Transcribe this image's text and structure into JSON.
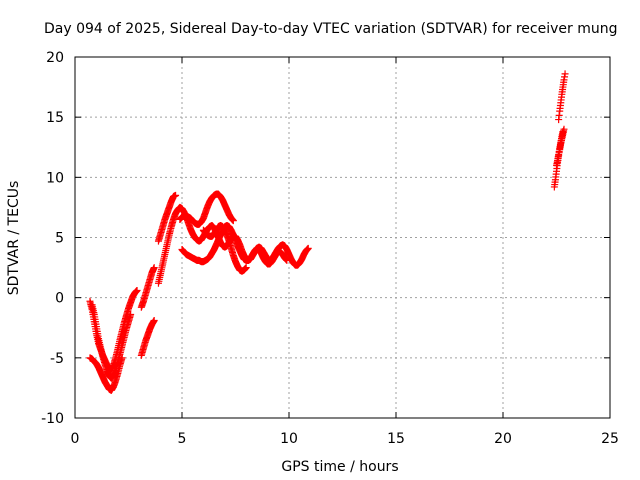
{
  "chart_data": {
    "type": "scatter",
    "title": "Day 094 of 2025, Sidereal Day-to-day VTEC variation (SDTVAR) for receiver mung",
    "xlabel": "GPS time / hours",
    "ylabel": "SDTVAR / TECUs",
    "xlim": [
      0,
      25
    ],
    "ylim": [
      -10,
      20
    ],
    "xticks": [
      "0",
      "5",
      "10",
      "15",
      "20",
      "25"
    ],
    "yticks": [
      "-10",
      "-5",
      "0",
      "5",
      "10",
      "15",
      "20"
    ],
    "grid": true,
    "legend": "none",
    "marker": "+",
    "series_color": "#ff0000",
    "series": [
      {
        "values": [
          [
            0.7,
            -0.3
          ],
          [
            0.8,
            -1.0
          ],
          [
            0.9,
            -2.0
          ],
          [
            1.0,
            -3.0
          ],
          [
            1.1,
            -3.8
          ],
          [
            1.2,
            -4.3
          ],
          [
            1.3,
            -4.8
          ],
          [
            1.4,
            -5.2
          ],
          [
            1.5,
            -5.6
          ],
          [
            1.6,
            -5.8
          ],
          [
            1.7,
            -5.9
          ],
          [
            1.8,
            -5.6
          ],
          [
            1.9,
            -5.0
          ],
          [
            2.0,
            -4.3
          ],
          [
            2.1,
            -3.5
          ],
          [
            2.2,
            -2.8
          ],
          [
            2.3,
            -2.1
          ],
          [
            2.4,
            -1.5
          ],
          [
            2.5,
            -0.9
          ],
          [
            2.6,
            -0.4
          ],
          [
            2.7,
            0.1
          ],
          [
            2.8,
            0.4
          ],
          [
            2.9,
            0.6
          ]
        ]
      },
      {
        "values": [
          [
            0.8,
            -0.6
          ],
          [
            0.9,
            -1.4
          ],
          [
            1.0,
            -2.4
          ],
          [
            1.1,
            -3.4
          ],
          [
            1.2,
            -4.2
          ],
          [
            1.3,
            -4.9
          ],
          [
            1.4,
            -5.5
          ],
          [
            1.5,
            -6.1
          ],
          [
            1.6,
            -6.5
          ],
          [
            1.7,
            -6.7
          ],
          [
            1.8,
            -6.4
          ],
          [
            1.9,
            -6.0
          ],
          [
            2.0,
            -5.4
          ],
          [
            2.1,
            -4.7
          ],
          [
            2.2,
            -4.0
          ],
          [
            2.3,
            -3.3
          ],
          [
            2.4,
            -2.6
          ],
          [
            2.5,
            -2.0
          ],
          [
            2.6,
            -1.4
          ]
        ]
      },
      {
        "values": [
          [
            0.7,
            -5.0
          ],
          [
            0.8,
            -5.1
          ],
          [
            0.9,
            -5.3
          ],
          [
            1.0,
            -5.5
          ],
          [
            1.1,
            -5.8
          ],
          [
            1.2,
            -6.2
          ],
          [
            1.3,
            -6.6
          ],
          [
            1.4,
            -7.0
          ],
          [
            1.5,
            -7.3
          ],
          [
            1.6,
            -7.6
          ],
          [
            1.7,
            -7.7
          ],
          [
            1.8,
            -7.4
          ],
          [
            1.9,
            -6.9
          ],
          [
            2.0,
            -6.3
          ],
          [
            2.1,
            -5.6
          ],
          [
            2.2,
            -5.0
          ]
        ]
      },
      {
        "values": [
          [
            3.1,
            -4.8
          ],
          [
            3.2,
            -4.2
          ],
          [
            3.3,
            -3.6
          ],
          [
            3.4,
            -3.1
          ],
          [
            3.5,
            -2.6
          ],
          [
            3.6,
            -2.2
          ],
          [
            3.7,
            -1.9
          ]
        ]
      },
      {
        "values": [
          [
            3.1,
            -0.8
          ],
          [
            3.2,
            -0.3
          ],
          [
            3.3,
            0.3
          ],
          [
            3.4,
            0.9
          ],
          [
            3.5,
            1.5
          ],
          [
            3.6,
            2.1
          ],
          [
            3.7,
            2.5
          ]
        ]
      },
      {
        "values": [
          [
            3.9,
            1.2
          ],
          [
            4.0,
            2.0
          ],
          [
            4.1,
            2.8
          ],
          [
            4.2,
            3.6
          ],
          [
            4.3,
            4.4
          ],
          [
            4.4,
            5.2
          ],
          [
            4.5,
            5.9
          ],
          [
            4.6,
            6.5
          ],
          [
            4.7,
            7.0
          ],
          [
            4.8,
            7.3
          ],
          [
            4.9,
            7.5
          ],
          [
            5.0,
            7.4
          ],
          [
            5.1,
            7.1
          ],
          [
            5.2,
            6.7
          ],
          [
            5.3,
            6.2
          ],
          [
            5.4,
            5.7
          ],
          [
            5.5,
            5.3
          ],
          [
            5.6,
            5.0
          ],
          [
            5.7,
            4.8
          ],
          [
            5.8,
            4.7
          ],
          [
            5.9,
            4.8
          ],
          [
            6.0,
            5.1
          ],
          [
            6.1,
            5.4
          ],
          [
            6.2,
            5.7
          ],
          [
            6.3,
            5.9
          ],
          [
            6.4,
            6.0
          ],
          [
            6.5,
            5.8
          ],
          [
            6.6,
            5.4
          ],
          [
            6.7,
            5.0
          ],
          [
            6.8,
            4.6
          ],
          [
            6.9,
            4.3
          ],
          [
            7.0,
            4.2
          ],
          [
            7.1,
            4.3
          ],
          [
            7.2,
            4.6
          ],
          [
            7.3,
            4.9
          ],
          [
            7.4,
            5.1
          ],
          [
            7.5,
            5.1
          ],
          [
            7.6,
            4.8
          ],
          [
            7.7,
            4.4
          ],
          [
            7.8,
            3.9
          ],
          [
            7.9,
            3.5
          ],
          [
            8.0,
            3.2
          ],
          [
            8.1,
            3.1
          ],
          [
            8.2,
            3.2
          ],
          [
            8.3,
            3.5
          ],
          [
            8.4,
            3.8
          ],
          [
            8.5,
            4.1
          ],
          [
            8.6,
            4.2
          ],
          [
            8.7,
            4.1
          ],
          [
            8.8,
            3.8
          ],
          [
            8.9,
            3.5
          ],
          [
            9.0,
            3.2
          ],
          [
            9.1,
            3.1
          ],
          [
            9.2,
            3.2
          ],
          [
            9.3,
            3.5
          ],
          [
            9.4,
            3.8
          ],
          [
            9.5,
            4.1
          ],
          [
            9.6,
            4.3
          ],
          [
            9.7,
            4.4
          ],
          [
            9.8,
            4.3
          ],
          [
            9.9,
            4.0
          ],
          [
            10.0,
            3.6
          ],
          [
            10.1,
            3.2
          ],
          [
            10.2,
            2.9
          ],
          [
            10.3,
            2.7
          ],
          [
            10.4,
            2.7
          ],
          [
            10.5,
            2.9
          ],
          [
            10.6,
            3.2
          ],
          [
            10.7,
            3.6
          ],
          [
            10.8,
            3.9
          ],
          [
            10.9,
            4.1
          ]
        ]
      },
      {
        "values": [
          [
            3.9,
            4.7
          ],
          [
            4.0,
            5.3
          ],
          [
            4.1,
            5.9
          ],
          [
            4.2,
            6.5
          ],
          [
            4.3,
            7.0
          ],
          [
            4.4,
            7.5
          ],
          [
            4.5,
            8.0
          ],
          [
            4.6,
            8.4
          ],
          [
            4.7,
            8.5
          ]
        ]
      },
      {
        "values": [
          [
            4.9,
            6.5
          ],
          [
            5.0,
            6.7
          ],
          [
            5.1,
            6.8
          ],
          [
            5.2,
            6.8
          ],
          [
            5.3,
            6.7
          ],
          [
            5.4,
            6.6
          ],
          [
            5.5,
            6.4
          ],
          [
            5.6,
            6.2
          ],
          [
            5.7,
            6.1
          ],
          [
            5.8,
            6.1
          ],
          [
            5.9,
            6.3
          ],
          [
            6.0,
            6.6
          ],
          [
            6.1,
            7.1
          ],
          [
            6.2,
            7.6
          ],
          [
            6.3,
            8.0
          ],
          [
            6.4,
            8.3
          ],
          [
            6.5,
            8.5
          ],
          [
            6.6,
            8.6
          ],
          [
            6.7,
            8.6
          ],
          [
            6.8,
            8.4
          ],
          [
            6.9,
            8.1
          ],
          [
            7.0,
            7.7
          ],
          [
            7.1,
            7.3
          ],
          [
            7.2,
            6.9
          ],
          [
            7.3,
            6.6
          ],
          [
            7.4,
            6.4
          ]
        ]
      },
      {
        "values": [
          [
            5.0,
            4.0
          ],
          [
            5.1,
            3.8
          ],
          [
            5.2,
            3.6
          ],
          [
            5.3,
            3.5
          ],
          [
            5.4,
            3.4
          ],
          [
            5.5,
            3.3
          ],
          [
            5.6,
            3.2
          ],
          [
            5.7,
            3.1
          ],
          [
            5.8,
            3.1
          ],
          [
            5.9,
            3.0
          ],
          [
            6.0,
            3.0
          ],
          [
            6.1,
            3.1
          ],
          [
            6.2,
            3.2
          ],
          [
            6.3,
            3.4
          ],
          [
            6.4,
            3.7
          ],
          [
            6.5,
            4.0
          ],
          [
            6.6,
            4.4
          ],
          [
            6.7,
            4.8
          ],
          [
            6.8,
            5.2
          ],
          [
            6.9,
            5.6
          ],
          [
            7.0,
            5.9
          ],
          [
            7.1,
            6.0
          ],
          [
            7.2,
            5.9
          ],
          [
            7.3,
            5.6
          ],
          [
            7.4,
            5.2
          ],
          [
            7.5,
            4.8
          ],
          [
            7.6,
            4.3
          ],
          [
            7.7,
            3.9
          ],
          [
            7.8,
            3.5
          ],
          [
            7.9,
            3.2
          ],
          [
            8.0,
            3.1
          ],
          [
            8.1,
            3.1
          ],
          [
            8.2,
            3.3
          ],
          [
            8.3,
            3.6
          ],
          [
            8.4,
            3.9
          ],
          [
            8.5,
            4.1
          ],
          [
            8.6,
            4.0
          ],
          [
            8.7,
            3.7
          ],
          [
            8.8,
            3.3
          ],
          [
            8.9,
            3.0
          ],
          [
            9.0,
            2.8
          ],
          [
            9.1,
            2.8
          ],
          [
            9.2,
            3.0
          ],
          [
            9.3,
            3.3
          ],
          [
            9.4,
            3.6
          ],
          [
            9.5,
            3.8
          ],
          [
            9.6,
            3.8
          ],
          [
            9.7,
            3.6
          ],
          [
            9.8,
            3.3
          ],
          [
            9.9,
            3.1
          ]
        ]
      },
      {
        "values": [
          [
            6.0,
            5.6
          ],
          [
            6.1,
            5.4
          ],
          [
            6.2,
            5.2
          ],
          [
            6.3,
            5.1
          ],
          [
            6.4,
            5.1
          ],
          [
            6.5,
            5.3
          ],
          [
            6.6,
            5.6
          ],
          [
            6.7,
            5.9
          ],
          [
            6.8,
            6.0
          ],
          [
            6.9,
            5.9
          ],
          [
            7.0,
            5.6
          ],
          [
            7.1,
            5.2
          ],
          [
            7.2,
            4.7
          ],
          [
            7.3,
            4.1
          ],
          [
            7.4,
            3.5
          ],
          [
            7.5,
            3.0
          ],
          [
            7.6,
            2.6
          ],
          [
            7.7,
            2.3
          ],
          [
            7.8,
            2.2
          ],
          [
            7.9,
            2.3
          ],
          [
            8.0,
            2.5
          ]
        ]
      },
      {
        "values": [
          [
            22.4,
            9.2
          ],
          [
            22.45,
            9.8
          ],
          [
            22.5,
            10.5
          ],
          [
            22.55,
            11.2
          ],
          [
            22.6,
            11.8
          ],
          [
            22.65,
            12.3
          ],
          [
            22.7,
            12.8
          ],
          [
            22.75,
            13.2
          ],
          [
            22.8,
            13.6
          ],
          [
            22.85,
            14.0
          ]
        ]
      },
      {
        "values": [
          [
            22.5,
            11.0
          ],
          [
            22.55,
            11.4
          ],
          [
            22.6,
            11.9
          ],
          [
            22.65,
            12.4
          ],
          [
            22.7,
            12.9
          ],
          [
            22.75,
            13.4
          ],
          [
            22.8,
            13.8
          ]
        ]
      },
      {
        "values": [
          [
            22.6,
            14.8
          ],
          [
            22.65,
            15.5
          ],
          [
            22.7,
            16.2
          ],
          [
            22.75,
            16.9
          ],
          [
            22.8,
            17.5
          ],
          [
            22.85,
            18.1
          ],
          [
            22.9,
            18.6
          ]
        ]
      }
    ]
  }
}
